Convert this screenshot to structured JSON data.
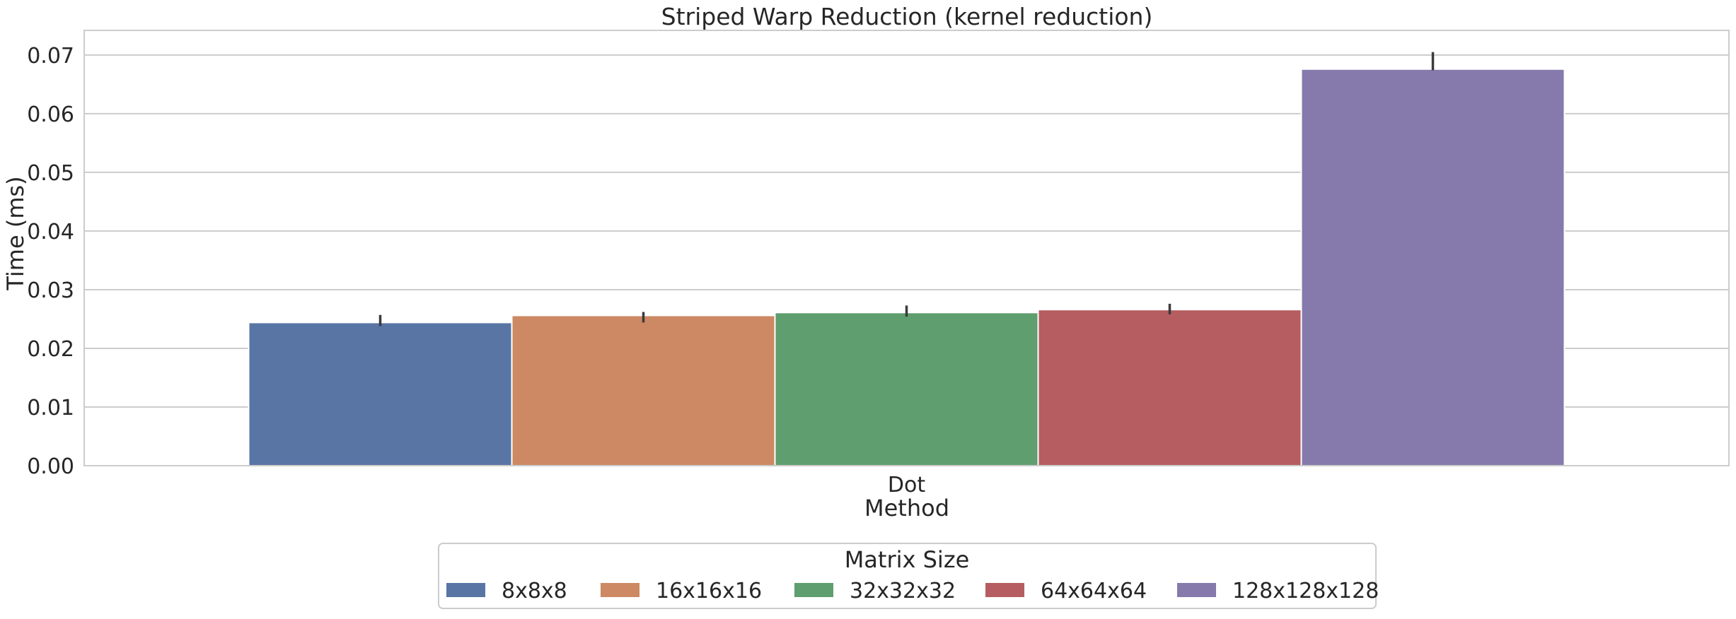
{
  "chart_data": {
    "type": "bar",
    "title": "Striped Warp Reduction (kernel reduction)",
    "xlabel": "Method",
    "ylabel": "Time (ms)",
    "categories": [
      "Dot"
    ],
    "ylim": [
      0,
      0.0742
    ],
    "yticks": [
      "0.00",
      "0.01",
      "0.02",
      "0.03",
      "0.04",
      "0.05",
      "0.06",
      "0.07"
    ],
    "grid": true,
    "legend_position": "bottom-center",
    "legend_title": "Matrix Size",
    "series": [
      {
        "name": "8x8x8",
        "values": [
          0.0244
        ],
        "error": [
          [
            0.0238,
            0.0257
          ]
        ],
        "color": "#5875a4"
      },
      {
        "name": "16x16x16",
        "values": [
          0.0256
        ],
        "error": [
          [
            0.0244,
            0.0262
          ]
        ],
        "color": "#cc8963"
      },
      {
        "name": "32x32x32",
        "values": [
          0.0261
        ],
        "error": [
          [
            0.0254,
            0.0273
          ]
        ],
        "color": "#5f9e6e"
      },
      {
        "name": "64x64x64",
        "values": [
          0.0266
        ],
        "error": [
          [
            0.0258,
            0.0276
          ]
        ],
        "color": "#b55d60"
      },
      {
        "name": "128x128x128",
        "values": [
          0.0676
        ],
        "error": [
          [
            0.0674,
            0.0705
          ]
        ],
        "color": "#857aab"
      }
    ]
  }
}
